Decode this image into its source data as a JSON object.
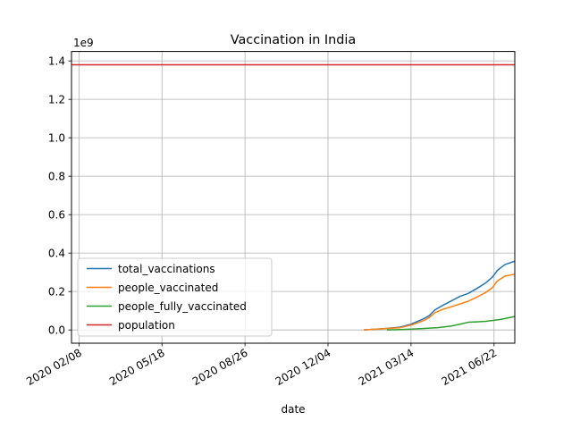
{
  "chart_data": {
    "type": "line",
    "title": "Vaccination in India",
    "xlabel": "date",
    "ylabel": "",
    "y_offset_label": "1e9",
    "grid": true,
    "legend_position": "lower-left",
    "xlim": [
      "2020-01-30",
      "2021-07-17"
    ],
    "ylim": [
      -0.069,
      1.449
    ],
    "x_ticks": [
      {
        "date": "2020-02-08",
        "label": "2020 02/08"
      },
      {
        "date": "2020-05-18",
        "label": "2020 05/18"
      },
      {
        "date": "2020-08-26",
        "label": "2020 08/26"
      },
      {
        "date": "2020-12-04",
        "label": "2020 12/04"
      },
      {
        "date": "2021-03-14",
        "label": "2021 03/14"
      },
      {
        "date": "2021-06-22",
        "label": "2021 06/22"
      }
    ],
    "y_ticks": [
      {
        "value": 0.0,
        "label": "0.0"
      },
      {
        "value": 0.2,
        "label": "0.2"
      },
      {
        "value": 0.4,
        "label": "0.4"
      },
      {
        "value": 0.6,
        "label": "0.6"
      },
      {
        "value": 0.8,
        "label": "0.8"
      },
      {
        "value": 1.0,
        "label": "1.0"
      },
      {
        "value": 1.2,
        "label": "1.2"
      },
      {
        "value": 1.4,
        "label": "1.4"
      }
    ],
    "series": [
      {
        "name": "total_vaccinations",
        "color": "#1f77b4",
        "points": [
          [
            "2021-01-16",
            0.0
          ],
          [
            "2021-02-01",
            0.004
          ],
          [
            "2021-02-15",
            0.009
          ],
          [
            "2021-03-01",
            0.015
          ],
          [
            "2021-03-14",
            0.03
          ],
          [
            "2021-03-30",
            0.06
          ],
          [
            "2021-04-05",
            0.075
          ],
          [
            "2021-04-12",
            0.105
          ],
          [
            "2021-04-20",
            0.125
          ],
          [
            "2021-05-01",
            0.15
          ],
          [
            "2021-05-12",
            0.175
          ],
          [
            "2021-05-22",
            0.19
          ],
          [
            "2021-06-01",
            0.215
          ],
          [
            "2021-06-12",
            0.245
          ],
          [
            "2021-06-20",
            0.275
          ],
          [
            "2021-06-26",
            0.31
          ],
          [
            "2021-07-05",
            0.34
          ],
          [
            "2021-07-17",
            0.358
          ]
        ]
      },
      {
        "name": "people_vaccinated",
        "color": "#ff7f0e",
        "points": [
          [
            "2021-01-16",
            0.0
          ],
          [
            "2021-02-01",
            0.004
          ],
          [
            "2021-02-15",
            0.008
          ],
          [
            "2021-03-01",
            0.012
          ],
          [
            "2021-03-14",
            0.025
          ],
          [
            "2021-03-30",
            0.05
          ],
          [
            "2021-04-05",
            0.065
          ],
          [
            "2021-04-12",
            0.09
          ],
          [
            "2021-04-20",
            0.105
          ],
          [
            "2021-05-01",
            0.12
          ],
          [
            "2021-05-12",
            0.135
          ],
          [
            "2021-05-22",
            0.15
          ],
          [
            "2021-06-01",
            0.17
          ],
          [
            "2021-06-12",
            0.195
          ],
          [
            "2021-06-20",
            0.22
          ],
          [
            "2021-06-26",
            0.255
          ],
          [
            "2021-07-05",
            0.28
          ],
          [
            "2021-07-17",
            0.29
          ]
        ]
      },
      {
        "name": "people_fully_vaccinated",
        "color": "#2ca02c",
        "points": [
          [
            "2021-02-13",
            0.0
          ],
          [
            "2021-03-01",
            0.002
          ],
          [
            "2021-03-14",
            0.004
          ],
          [
            "2021-03-30",
            0.008
          ],
          [
            "2021-04-15",
            0.012
          ],
          [
            "2021-05-01",
            0.02
          ],
          [
            "2021-05-12",
            0.03
          ],
          [
            "2021-05-22",
            0.04
          ],
          [
            "2021-06-01",
            0.042
          ],
          [
            "2021-06-12",
            0.045
          ],
          [
            "2021-06-22",
            0.05
          ],
          [
            "2021-06-30",
            0.055
          ],
          [
            "2021-07-08",
            0.062
          ],
          [
            "2021-07-17",
            0.07
          ]
        ]
      },
      {
        "name": "population",
        "color": "#d62728",
        "points": [
          [
            "2020-01-30",
            1.38
          ],
          [
            "2021-07-17",
            1.38
          ]
        ]
      }
    ]
  }
}
